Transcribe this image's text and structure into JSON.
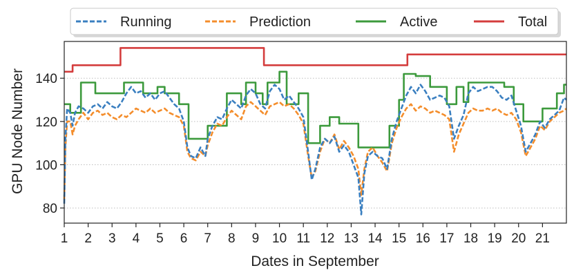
{
  "chart_data": {
    "type": "line",
    "title": "",
    "xlabel": "Dates in September",
    "ylabel": "GPU Node Number",
    "xlim": [
      1,
      22
    ],
    "ylim": [
      73,
      157
    ],
    "x_ticks": [
      1,
      2,
      3,
      4,
      5,
      6,
      7,
      8,
      9,
      10,
      11,
      12,
      13,
      14,
      15,
      16,
      17,
      18,
      19,
      20,
      21
    ],
    "y_ticks": [
      80,
      100,
      120,
      140
    ],
    "grid": "horizontal dotted",
    "legend_position": "top",
    "series": [
      {
        "name": "Running",
        "color": "#3a7fc0",
        "style": "dashed",
        "points": [
          [
            1.0,
            82
          ],
          [
            1.05,
            112
          ],
          [
            1.12,
            126
          ],
          [
            1.25,
            124
          ],
          [
            1.35,
            118
          ],
          [
            1.45,
            124
          ],
          [
            1.6,
            127
          ],
          [
            1.8,
            126
          ],
          [
            2.0,
            124
          ],
          [
            2.2,
            127
          ],
          [
            2.4,
            128
          ],
          [
            2.6,
            126
          ],
          [
            2.8,
            129
          ],
          [
            3.0,
            127
          ],
          [
            3.2,
            126
          ],
          [
            3.4,
            129
          ],
          [
            3.6,
            133
          ],
          [
            3.8,
            136
          ],
          [
            4.0,
            133
          ],
          [
            4.2,
            134
          ],
          [
            4.4,
            131
          ],
          [
            4.6,
            133
          ],
          [
            4.8,
            130
          ],
          [
            5.0,
            133
          ],
          [
            5.2,
            134
          ],
          [
            5.4,
            131
          ],
          [
            5.6,
            128
          ],
          [
            5.8,
            126
          ],
          [
            6.0,
            120
          ],
          [
            6.15,
            108
          ],
          [
            6.3,
            104
          ],
          [
            6.5,
            103
          ],
          [
            6.7,
            108
          ],
          [
            6.9,
            104
          ],
          [
            7.0,
            112
          ],
          [
            7.2,
            118
          ],
          [
            7.4,
            122
          ],
          [
            7.6,
            121
          ],
          [
            7.8,
            126
          ],
          [
            8.0,
            130
          ],
          [
            8.2,
            128
          ],
          [
            8.4,
            126
          ],
          [
            8.6,
            132
          ],
          [
            8.8,
            135
          ],
          [
            9.0,
            133
          ],
          [
            9.2,
            128
          ],
          [
            9.4,
            126
          ],
          [
            9.6,
            134
          ],
          [
            9.8,
            137
          ],
          [
            10.0,
            135
          ],
          [
            10.2,
            130
          ],
          [
            10.4,
            132
          ],
          [
            10.6,
            129
          ],
          [
            10.8,
            126
          ],
          [
            11.0,
            122
          ],
          [
            11.2,
            106
          ],
          [
            11.35,
            93
          ],
          [
            11.5,
            98
          ],
          [
            11.7,
            108
          ],
          [
            11.9,
            112
          ],
          [
            12.1,
            110
          ],
          [
            12.3,
            113
          ],
          [
            12.5,
            106
          ],
          [
            12.7,
            109
          ],
          [
            12.9,
            106
          ],
          [
            13.1,
            100
          ],
          [
            13.3,
            94
          ],
          [
            13.42,
            77
          ],
          [
            13.55,
            96
          ],
          [
            13.7,
            104
          ],
          [
            13.9,
            106
          ],
          [
            14.1,
            104
          ],
          [
            14.3,
            103
          ],
          [
            14.5,
            98
          ],
          [
            14.7,
            112
          ],
          [
            14.9,
            120
          ],
          [
            15.1,
            126
          ],
          [
            15.3,
            132
          ],
          [
            15.5,
            136
          ],
          [
            15.7,
            133
          ],
          [
            15.9,
            137
          ],
          [
            16.1,
            134
          ],
          [
            16.3,
            130
          ],
          [
            16.5,
            131
          ],
          [
            16.7,
            132
          ],
          [
            16.9,
            131
          ],
          [
            17.1,
            127
          ],
          [
            17.3,
            112
          ],
          [
            17.5,
            118
          ],
          [
            17.7,
            123
          ],
          [
            17.9,
            133
          ],
          [
            18.1,
            136
          ],
          [
            18.3,
            134
          ],
          [
            18.5,
            135
          ],
          [
            18.7,
            136
          ],
          [
            18.9,
            136
          ],
          [
            19.1,
            134
          ],
          [
            19.3,
            131
          ],
          [
            19.5,
            130
          ],
          [
            19.7,
            132
          ],
          [
            19.9,
            125
          ],
          [
            20.1,
            118
          ],
          [
            20.3,
            106
          ],
          [
            20.5,
            110
          ],
          [
            20.7,
            114
          ],
          [
            20.9,
            120
          ],
          [
            21.1,
            117
          ],
          [
            21.3,
            121
          ],
          [
            21.5,
            123
          ],
          [
            21.7,
            125
          ],
          [
            21.9,
            131
          ],
          [
            22.0,
            130
          ]
        ]
      },
      {
        "name": "Prediction",
        "color": "#f48d2b",
        "style": "dashed",
        "points": [
          [
            1.0,
            84
          ],
          [
            1.05,
            108
          ],
          [
            1.12,
            120
          ],
          [
            1.25,
            120
          ],
          [
            1.35,
            114
          ],
          [
            1.45,
            118
          ],
          [
            1.6,
            121
          ],
          [
            1.8,
            124
          ],
          [
            2.0,
            121
          ],
          [
            2.2,
            124
          ],
          [
            2.4,
            125
          ],
          [
            2.6,
            123
          ],
          [
            2.8,
            124
          ],
          [
            3.0,
            122
          ],
          [
            3.2,
            121
          ],
          [
            3.4,
            123
          ],
          [
            3.6,
            122
          ],
          [
            3.8,
            124
          ],
          [
            4.0,
            126
          ],
          [
            4.2,
            125
          ],
          [
            4.4,
            124
          ],
          [
            4.6,
            126
          ],
          [
            4.8,
            124
          ],
          [
            5.0,
            125
          ],
          [
            5.2,
            126
          ],
          [
            5.4,
            124
          ],
          [
            5.6,
            123
          ],
          [
            5.8,
            122
          ],
          [
            6.0,
            118
          ],
          [
            6.15,
            106
          ],
          [
            6.3,
            103
          ],
          [
            6.5,
            102
          ],
          [
            6.7,
            106
          ],
          [
            6.9,
            104
          ],
          [
            7.0,
            109
          ],
          [
            7.2,
            115
          ],
          [
            7.4,
            119
          ],
          [
            7.6,
            118
          ],
          [
            7.8,
            122
          ],
          [
            8.0,
            125
          ],
          [
            8.2,
            123
          ],
          [
            8.4,
            121
          ],
          [
            8.6,
            127
          ],
          [
            8.8,
            129
          ],
          [
            9.0,
            127
          ],
          [
            9.2,
            125
          ],
          [
            9.4,
            123
          ],
          [
            9.6,
            127
          ],
          [
            9.8,
            128
          ],
          [
            10.0,
            129
          ],
          [
            10.2,
            127
          ],
          [
            10.4,
            128
          ],
          [
            10.6,
            126
          ],
          [
            10.8,
            123
          ],
          [
            11.0,
            119
          ],
          [
            11.2,
            104
          ],
          [
            11.35,
            94
          ],
          [
            11.5,
            97
          ],
          [
            11.7,
            106
          ],
          [
            11.9,
            112
          ],
          [
            12.1,
            110
          ],
          [
            12.3,
            114
          ],
          [
            12.5,
            107
          ],
          [
            12.7,
            111
          ],
          [
            12.9,
            108
          ],
          [
            13.1,
            104
          ],
          [
            13.3,
            98
          ],
          [
            13.42,
            86
          ],
          [
            13.55,
            98
          ],
          [
            13.7,
            106
          ],
          [
            13.9,
            108
          ],
          [
            14.1,
            104
          ],
          [
            14.3,
            101
          ],
          [
            14.5,
            97
          ],
          [
            14.7,
            110
          ],
          [
            14.9,
            117
          ],
          [
            15.1,
            122
          ],
          [
            15.3,
            126
          ],
          [
            15.5,
            128
          ],
          [
            15.7,
            125
          ],
          [
            15.9,
            127
          ],
          [
            16.1,
            126
          ],
          [
            16.3,
            124
          ],
          [
            16.5,
            125
          ],
          [
            16.7,
            124
          ],
          [
            16.9,
            123
          ],
          [
            17.1,
            121
          ],
          [
            17.3,
            106
          ],
          [
            17.5,
            114
          ],
          [
            17.7,
            119
          ],
          [
            17.9,
            124
          ],
          [
            18.1,
            126
          ],
          [
            18.3,
            125
          ],
          [
            18.5,
            125
          ],
          [
            18.7,
            126
          ],
          [
            18.9,
            125
          ],
          [
            19.1,
            126
          ],
          [
            19.3,
            124
          ],
          [
            19.5,
            123
          ],
          [
            19.7,
            124
          ],
          [
            19.9,
            121
          ],
          [
            20.1,
            115
          ],
          [
            20.3,
            104
          ],
          [
            20.5,
            108
          ],
          [
            20.7,
            112
          ],
          [
            20.9,
            118
          ],
          [
            21.1,
            116
          ],
          [
            21.3,
            120
          ],
          [
            21.5,
            122
          ],
          [
            21.7,
            124
          ],
          [
            21.9,
            125
          ],
          [
            22.0,
            126
          ]
        ]
      },
      {
        "name": "Active",
        "color": "#3c9a3c",
        "style": "solid",
        "step": true,
        "points": [
          [
            1.0,
            128
          ],
          [
            1.25,
            124
          ],
          [
            1.7,
            138
          ],
          [
            2.3,
            133
          ],
          [
            3.5,
            138
          ],
          [
            4.3,
            133
          ],
          [
            4.9,
            136
          ],
          [
            5.2,
            133
          ],
          [
            5.8,
            128
          ],
          [
            6.2,
            112
          ],
          [
            7.0,
            118
          ],
          [
            7.8,
            133
          ],
          [
            8.4,
            128
          ],
          [
            8.6,
            138
          ],
          [
            9.0,
            133
          ],
          [
            9.3,
            128
          ],
          [
            9.5,
            138
          ],
          [
            10.0,
            143
          ],
          [
            10.3,
            128
          ],
          [
            10.8,
            133
          ],
          [
            11.2,
            110
          ],
          [
            11.7,
            118
          ],
          [
            12.1,
            122
          ],
          [
            12.5,
            119
          ],
          [
            13.3,
            108
          ],
          [
            14.6,
            118
          ],
          [
            15.0,
            130
          ],
          [
            15.2,
            142
          ],
          [
            15.7,
            141
          ],
          [
            16.3,
            136
          ],
          [
            17.0,
            128
          ],
          [
            17.4,
            136
          ],
          [
            17.7,
            129
          ],
          [
            17.9,
            138
          ],
          [
            19.0,
            138
          ],
          [
            19.4,
            136
          ],
          [
            19.8,
            128
          ],
          [
            20.2,
            120
          ],
          [
            21.0,
            126
          ],
          [
            21.6,
            133
          ],
          [
            21.9,
            137
          ]
        ]
      },
      {
        "name": "Total",
        "color": "#d43d3d",
        "style": "solid",
        "step": true,
        "points": [
          [
            1.0,
            143
          ],
          [
            1.35,
            146
          ],
          [
            3.35,
            154
          ],
          [
            9.35,
            146
          ],
          [
            15.35,
            151
          ],
          [
            22.0,
            151
          ]
        ]
      }
    ]
  }
}
